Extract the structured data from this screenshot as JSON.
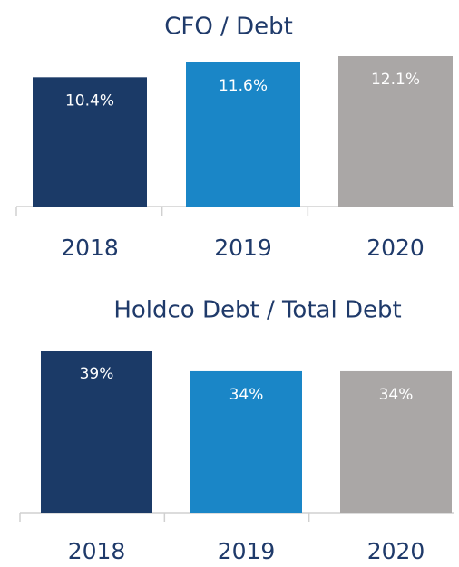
{
  "chart_data": [
    {
      "type": "bar",
      "title": "CFO / Debt",
      "categories": [
        "2018",
        "2019",
        "2020"
      ],
      "values": [
        10.4,
        11.6,
        12.1
      ],
      "value_labels": [
        "10.4%",
        "11.6%",
        "12.1%"
      ],
      "colors": [
        "#1b3a67",
        "#1a86c7",
        "#aaa7a6"
      ]
    },
    {
      "type": "bar",
      "title": "Holdco Debt / Total Debt",
      "categories": [
        "2018",
        "2019",
        "2020"
      ],
      "values": [
        39,
        34,
        34
      ],
      "value_labels": [
        "39%",
        "34%",
        "34%"
      ],
      "colors": [
        "#1b3a67",
        "#1a86c7",
        "#aaa7a6"
      ]
    }
  ]
}
